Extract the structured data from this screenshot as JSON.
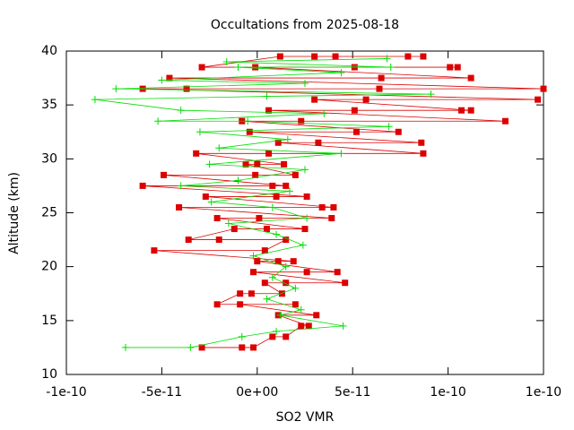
{
  "chart_data": {
    "type": "line",
    "title": "Occultations from 2025-08-18",
    "x_label": "SO2 VMR",
    "y_label": "Altitude (km)",
    "xlim": [
      -1e-10,
      1.5e-10
    ],
    "ylim": [
      10,
      40
    ],
    "xticks": [
      -1e-10,
      -5e-11,
      {
        "value": 0,
        "label": "0e+00"
      },
      5e-11,
      1e-10,
      {
        "value": 1.5e-10,
        "label": "1e-10"
      }
    ],
    "yticks": [
      10,
      15,
      20,
      25,
      30,
      35,
      40
    ],
    "series": [
      {
        "color": "#dd0000",
        "marker": "square",
        "x": [
          -2.9e-11,
          -8e-12,
          -2e-12,
          8e-12,
          1.5e-11,
          2.3e-11,
          2.7e-11,
          1.1e-11,
          3.1e-11,
          -9e-12,
          2e-11,
          -2.1e-11,
          -9e-12,
          -3e-12,
          1.3e-11,
          4e-12,
          1.5e-11,
          4.6e-11,
          -2e-12,
          2.6e-11,
          4.2e-11,
          0,
          1.1e-11,
          1.9e-11,
          -5.4e-11,
          4e-12,
          1.5e-11,
          -2e-11,
          -3.6e-11,
          -1.2e-11,
          5e-12,
          2.5e-11,
          -2.1e-11,
          1e-12,
          3.9e-11,
          -4.1e-11,
          3.4e-11,
          4e-11,
          -2.7e-11,
          1e-11,
          2.6e-11,
          -6e-11,
          8e-12,
          1.5e-11,
          -4.9e-11,
          -1e-12,
          2e-11,
          -6e-12,
          0,
          1.4e-11,
          -3.2e-11,
          6e-12,
          8.7e-11,
          1.1e-11,
          3.2e-11,
          8.6e-11,
          -4e-12,
          5.2e-11,
          7.4e-11,
          -8e-12,
          2.3e-11,
          1.3e-10,
          6e-12,
          5.1e-11,
          1.07e-10,
          1.12e-10,
          3e-11,
          5.7e-11,
          1.47e-10,
          -6e-11,
          -3.7e-11,
          6.4e-11,
          1.5e-10,
          -4.6e-11,
          6.5e-11,
          1.12e-10,
          -1e-12,
          5.1e-11,
          1.01e-10,
          1.05e-10,
          -2.9e-11,
          1.2e-11,
          3e-11,
          4.1e-11,
          7.9e-11,
          8.7e-11
        ],
        "values": [
          12.5,
          12.5,
          12.5,
          13.5,
          13.5,
          14.5,
          14.5,
          15.5,
          15.5,
          16.5,
          16.5,
          16.5,
          17.5,
          17.5,
          17.5,
          18.5,
          18.5,
          18.5,
          19.5,
          19.5,
          19.5,
          20.5,
          20.5,
          20.5,
          21.5,
          21.5,
          22.5,
          22.5,
          22.5,
          23.5,
          23.5,
          23.5,
          24.5,
          24.5,
          24.5,
          25.5,
          25.5,
          25.5,
          26.5,
          26.5,
          26.5,
          27.5,
          27.5,
          27.5,
          28.5,
          28.5,
          28.5,
          29.5,
          29.5,
          29.5,
          30.5,
          30.5,
          30.5,
          31.5,
          31.5,
          31.5,
          32.5,
          32.5,
          32.5,
          33.5,
          33.5,
          33.5,
          34.5,
          34.5,
          34.5,
          34.5,
          35.5,
          35.5,
          35.5,
          36.5,
          36.5,
          36.5,
          36.5,
          37.5,
          37.5,
          37.5,
          38.5,
          38.5,
          38.5,
          38.5,
          38.5,
          39.5,
          39.5,
          39.5,
          39.5,
          39.5
        ]
      },
      {
        "color": "#00dd00",
        "marker": "plus",
        "x": [
          -6.9e-11,
          -3.5e-11,
          -8e-12,
          1e-11,
          4.5e-11,
          1.2e-11,
          2.3e-11,
          5e-12,
          2e-11,
          8e-12,
          1.5e-11,
          -2e-12,
          2.4e-11,
          1e-11,
          -1.5e-11,
          2.6e-11,
          8e-12,
          -2.4e-11,
          1.7e-11,
          -4e-11,
          -1e-11,
          2.5e-11,
          -2.5e-11,
          4.4e-11,
          -2e-11,
          1.6e-11,
          -3e-11,
          6.9e-11,
          -5e-12,
          -5.2e-11,
          3.5e-11,
          -4e-11,
          -8.5e-11,
          5e-12,
          9.1e-11,
          -7.4e-11,
          2.5e-11,
          -5e-11,
          4.4e-11,
          -1e-11,
          7e-11,
          -1.6e-11,
          6.8e-11
        ],
        "values": [
          12.5,
          12.5,
          13.5,
          14,
          14.5,
          15.5,
          16,
          17,
          18,
          19,
          20,
          21,
          22,
          23,
          24,
          24.5,
          25.5,
          26,
          27,
          27.5,
          28,
          29,
          29.5,
          30.5,
          31,
          31.8,
          32.5,
          33,
          33.5,
          33.5,
          34.2,
          34.5,
          35.5,
          35.8,
          36,
          36.5,
          37,
          37.3,
          38,
          38.5,
          38.5,
          39,
          39.3
        ]
      }
    ]
  }
}
